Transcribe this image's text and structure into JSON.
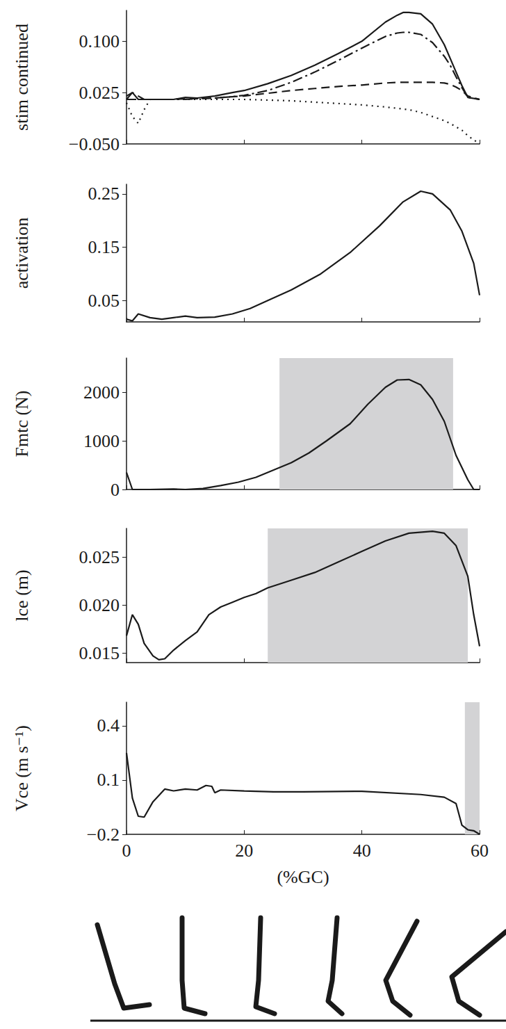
{
  "chart_data": [
    {
      "type": "line",
      "ylabel": "stim continued",
      "grid": false,
      "tick_labels": "y",
      "xlim": [
        0,
        60
      ],
      "xticks": [
        0,
        20,
        40,
        60
      ],
      "ylim": [
        -0.05,
        0.145
      ],
      "yticks": [
        {
          "value": -0.05,
          "label": "−0.050"
        },
        {
          "value": 0.025,
          "label": "0.025"
        },
        {
          "value": 0.1,
          "label": "0.100"
        }
      ],
      "x": [
        0,
        1,
        2,
        3,
        4,
        6,
        8,
        10,
        12,
        15,
        18,
        20,
        24,
        28,
        32,
        36,
        40,
        44,
        46,
        47,
        48,
        50,
        52,
        54,
        55,
        56,
        57,
        58,
        60
      ],
      "series": [
        {
          "line_style": "solid",
          "color": "#1a1a1a",
          "values": [
            0.015,
            0.025,
            0.015,
            0.015,
            0.015,
            0.015,
            0.015,
            0.018,
            0.017,
            0.02,
            0.025,
            0.028,
            0.038,
            0.05,
            0.065,
            0.082,
            0.1,
            0.128,
            0.138,
            0.142,
            0.142,
            0.14,
            0.125,
            0.095,
            0.075,
            0.055,
            0.035,
            0.018,
            0.015
          ]
        },
        {
          "line_style": "dashdot",
          "color": "#1a1a1a",
          "values": [
            0.015,
            0.015,
            0.015,
            0.015,
            0.015,
            0.015,
            0.015,
            0.015,
            0.016,
            0.017,
            0.019,
            0.021,
            0.028,
            0.04,
            0.055,
            0.072,
            0.09,
            0.107,
            0.112,
            0.113,
            0.113,
            0.11,
            0.098,
            0.078,
            0.065,
            0.048,
            0.032,
            0.018,
            0.015
          ]
        },
        {
          "line_style": "dashed",
          "color": "#1a1a1a",
          "values": [
            0.02,
            0.025,
            0.02,
            0.015,
            0.015,
            0.015,
            0.015,
            0.016,
            0.016,
            0.017,
            0.019,
            0.02,
            0.024,
            0.028,
            0.031,
            0.034,
            0.036,
            0.039,
            0.04,
            0.04,
            0.04,
            0.04,
            0.04,
            0.039,
            0.037,
            0.033,
            0.028,
            0.02,
            0.015
          ]
        },
        {
          "line_style": "dotted",
          "color": "#1a1a1a",
          "values": [
            0.01,
            -0.01,
            -0.02,
            0.0,
            0.015,
            0.015,
            0.015,
            0.015,
            0.015,
            0.015,
            0.015,
            0.015,
            0.014,
            0.013,
            0.011,
            0.009,
            0.007,
            0.004,
            0.002,
            0.001,
            0.0,
            -0.004,
            -0.01,
            -0.016,
            -0.02,
            -0.025,
            -0.03,
            -0.038,
            -0.05
          ]
        }
      ]
    },
    {
      "type": "line",
      "ylabel": "activation",
      "grid": false,
      "tick_labels": "y",
      "xlim": [
        0,
        60
      ],
      "xticks": [
        0,
        20,
        40,
        60
      ],
      "ylim": [
        0.01,
        0.268
      ],
      "yticks": [
        0.05,
        0.15,
        0.25
      ],
      "x": [
        0,
        1,
        2,
        4,
        6,
        8,
        10,
        12,
        15,
        18,
        21,
        24,
        28,
        33,
        38,
        43,
        47,
        50,
        52,
        55,
        57,
        59,
        60
      ],
      "series": [
        {
          "line_style": "solid",
          "color": "#1a1a1a",
          "values": [
            0.015,
            0.012,
            0.025,
            0.018,
            0.015,
            0.018,
            0.021,
            0.018,
            0.019,
            0.025,
            0.035,
            0.05,
            0.07,
            0.1,
            0.14,
            0.19,
            0.235,
            0.255,
            0.25,
            0.22,
            0.18,
            0.12,
            0.06
          ]
        }
      ]
    },
    {
      "type": "line",
      "ylabel": "Fmtc (N)",
      "grid": false,
      "tick_labels": "y",
      "xlim": [
        0,
        60
      ],
      "xticks": [
        0,
        20,
        40,
        60
      ],
      "ylim": [
        0,
        2700
      ],
      "yticks": [
        0,
        1000,
        2000
      ],
      "shaded": [
        26,
        55.5
      ],
      "x": [
        0,
        1,
        4,
        8,
        10,
        13,
        16,
        19,
        22,
        25,
        28,
        31,
        34,
        38,
        41,
        44,
        46,
        48,
        50,
        52,
        54,
        56,
        58,
        59,
        60
      ],
      "series": [
        {
          "line_style": "solid",
          "color": "#1a1a1a",
          "values": [
            350,
            0,
            0,
            10,
            0,
            20,
            80,
            150,
            250,
            400,
            550,
            750,
            1000,
            1350,
            1750,
            2100,
            2250,
            2260,
            2150,
            1850,
            1400,
            700,
            200,
            0,
            0
          ]
        }
      ]
    },
    {
      "type": "line",
      "ylabel": "lce (m)",
      "grid": false,
      "tick_labels": "y",
      "xlim": [
        0,
        60
      ],
      "xticks": [
        0,
        20,
        40,
        60
      ],
      "ylim": [
        0.014,
        0.028
      ],
      "yticks": [
        {
          "value": 0.015,
          "label": "0.015"
        },
        {
          "value": 0.02,
          "label": "0.020"
        },
        {
          "value": 0.025,
          "label": "0.025"
        }
      ],
      "shaded": [
        24,
        58
      ],
      "x": [
        0,
        1,
        2,
        3,
        4.5,
        5.5,
        6.5,
        8,
        10,
        12,
        14,
        16,
        18,
        20,
        22,
        24,
        28,
        32,
        36,
        40,
        44,
        48,
        52,
        54,
        56,
        58,
        59,
        60
      ],
      "series": [
        {
          "line_style": "solid",
          "color": "#1a1a1a",
          "values": [
            0.0168,
            0.019,
            0.018,
            0.016,
            0.0147,
            0.0143,
            0.0144,
            0.0153,
            0.0163,
            0.0172,
            0.019,
            0.0198,
            0.0203,
            0.0208,
            0.0212,
            0.0218,
            0.0226,
            0.0234,
            0.0245,
            0.0256,
            0.0267,
            0.0275,
            0.0277,
            0.0275,
            0.0262,
            0.023,
            0.019,
            0.0157
          ]
        }
      ]
    },
    {
      "type": "line",
      "ylabel": "Vce (m s⁻¹)",
      "xlabel": "(%GC)",
      "grid": false,
      "xlim": [
        0,
        60
      ],
      "xticks": [
        0,
        20,
        40,
        60
      ],
      "ylim": [
        -0.2,
        0.53
      ],
      "yticks": [
        {
          "value": -0.2,
          "label": "−0.2"
        },
        {
          "value": 0.1,
          "label": "0.1"
        },
        {
          "value": 0.4,
          "label": "0.4"
        }
      ],
      "shaded": [
        57.5,
        60
      ],
      "x": [
        0,
        1,
        2,
        3,
        4.5,
        6.5,
        8,
        10,
        12,
        13.5,
        14.5,
        15,
        16,
        20,
        25,
        30,
        40,
        50,
        54,
        56,
        57,
        58,
        59,
        60
      ],
      "series": [
        {
          "line_style": "solid",
          "color": "#1a1a1a",
          "values": [
            0.25,
            0.0,
            -0.1,
            -0.105,
            -0.02,
            0.05,
            0.04,
            0.05,
            0.045,
            0.07,
            0.065,
            0.03,
            0.045,
            0.04,
            0.035,
            0.035,
            0.038,
            0.02,
            0.005,
            -0.03,
            -0.15,
            -0.175,
            -0.18,
            -0.2
          ]
        }
      ]
    }
  ]
}
